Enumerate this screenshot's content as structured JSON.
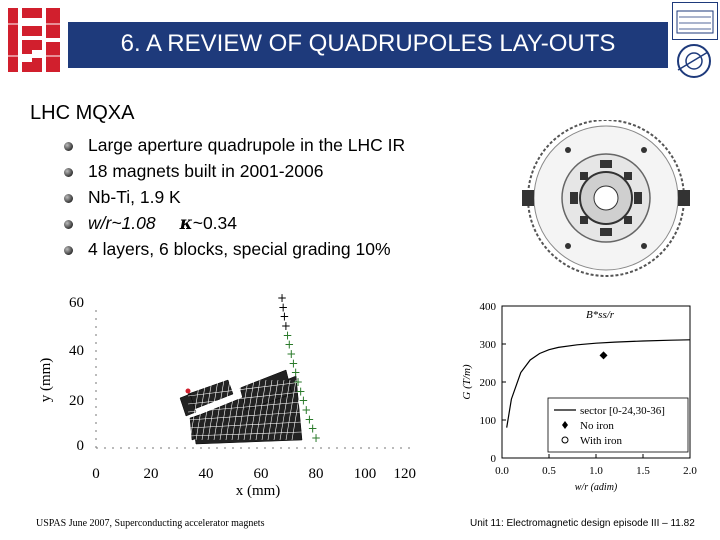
{
  "header": {
    "title": "6. A REVIEW OF QUADRUPOLES LAY-OUTS"
  },
  "slide": {
    "subtitle": "LHC MQXA",
    "bullets": [
      {
        "text": "Large aperture quadrupole in the LHC IR"
      },
      {
        "text": "18 magnets built in 2001-2006"
      },
      {
        "text": "Nb-Ti, 1.9 K"
      },
      {
        "text_a": "w/r~1.08",
        "text_b": "~0.34",
        "kappa": "κ"
      },
      {
        "text": "4 layers, 6 blocks, special grading 10%"
      }
    ]
  },
  "left_plot": {
    "ylabel": "y (mm)",
    "xlabel": "x (mm)",
    "yticks": [
      "0",
      "20",
      "40",
      "60"
    ],
    "xticks": [
      "0",
      "20",
      "40",
      "60",
      "80",
      "100",
      "120"
    ]
  },
  "chart_data": {
    "type": "line",
    "title": "B*ss/r",
    "xlabel": "w/r (adim)",
    "ylabel": "G (T/m)",
    "xlim": [
      0,
      2.0
    ],
    "ylim": [
      0,
      400
    ],
    "xticks": [
      "0.0",
      "0.5",
      "1.0",
      "1.5",
      "2.0"
    ],
    "yticks": [
      "0",
      "100",
      "200",
      "300",
      "400"
    ],
    "legend_position": "bottom-right",
    "series": [
      {
        "name": "sector [0-24,30-36]",
        "x": [
          0.05,
          0.1,
          0.2,
          0.3,
          0.4,
          0.5,
          0.6,
          0.8,
          1.0,
          1.2,
          1.5,
          1.8,
          2.0
        ],
        "y": [
          80,
          155,
          225,
          258,
          275,
          285,
          291,
          298,
          302,
          305,
          308,
          310,
          311
        ]
      },
      {
        "name": "No iron",
        "x": [
          1.08
        ],
        "y": [
          270
        ]
      },
      {
        "name": "With iron",
        "x": [],
        "y": []
      }
    ]
  },
  "footer": {
    "left": "USPAS June 2007, Superconducting accelerator magnets",
    "right": "Unit 11: Electromagnetic design episode III – 11.82"
  },
  "colors": {
    "title_band": "#1e3a7b",
    "logo_red": "#d11f2d"
  }
}
